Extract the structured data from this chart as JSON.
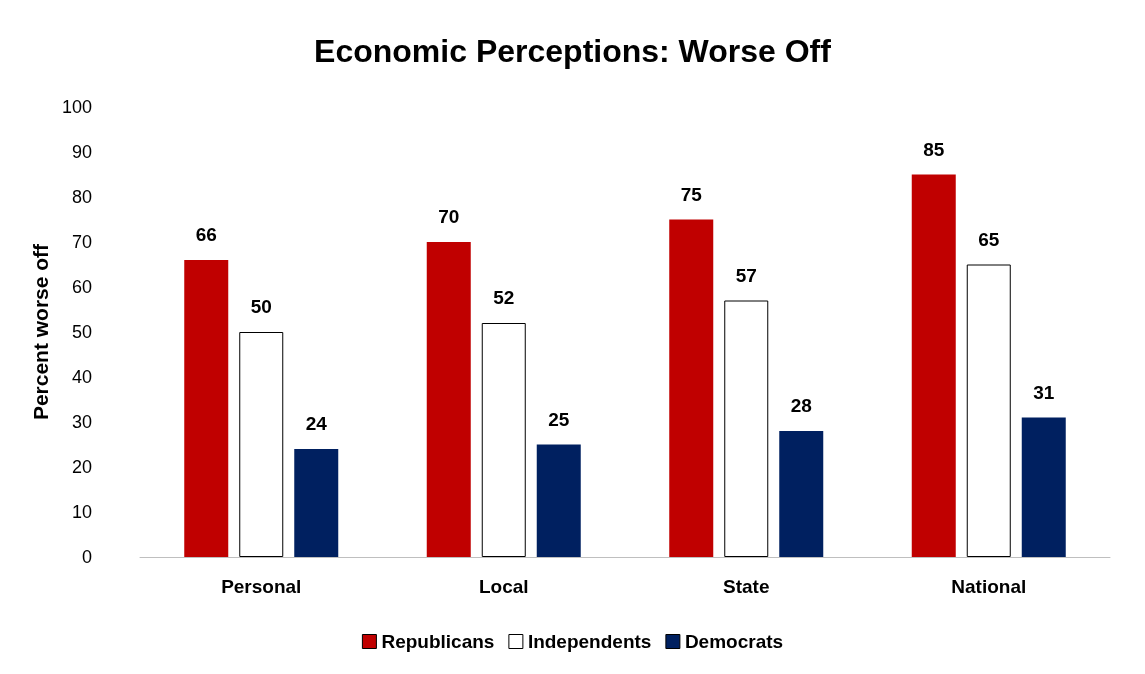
{
  "chart_data": {
    "type": "bar",
    "title": "Economic Perceptions: Worse Off",
    "ylabel": "Percent worse off",
    "categories": [
      "Personal",
      "Local",
      "State",
      "National"
    ],
    "series": [
      {
        "name": "Republicans",
        "color": "#c00000",
        "values": [
          66,
          70,
          75,
          85
        ]
      },
      {
        "name": "Independents",
        "color": "#ffffff",
        "values": [
          50,
          52,
          57,
          65
        ]
      },
      {
        "name": "Democrats",
        "color": "#002060",
        "values": [
          24,
          25,
          28,
          31
        ]
      }
    ],
    "ylim": [
      0,
      100
    ],
    "yticks": [
      0,
      10,
      20,
      30,
      40,
      50,
      60,
      70,
      80,
      90,
      100
    ],
    "grid": false,
    "legend": "bottom",
    "data_labels": true
  }
}
